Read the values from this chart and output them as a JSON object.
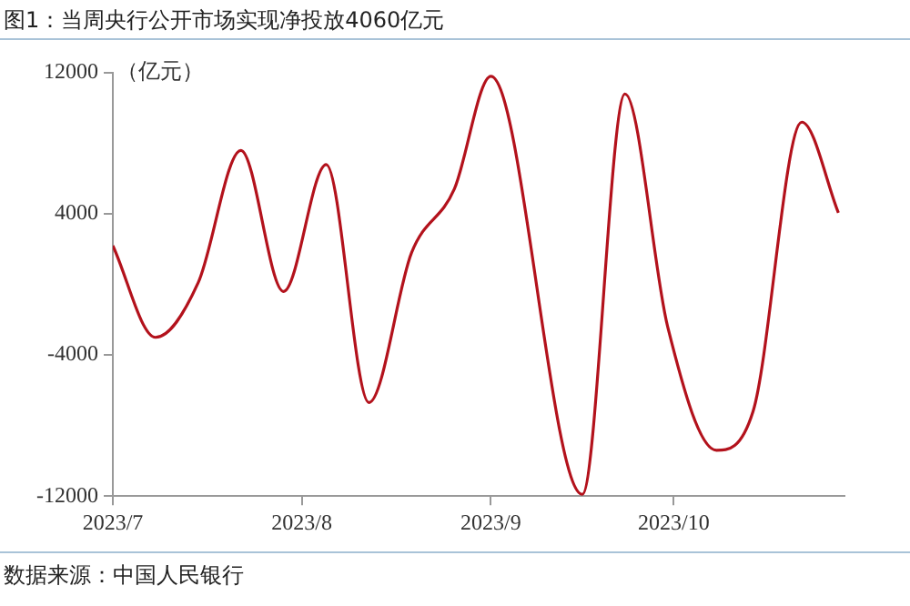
{
  "chart_data": {
    "type": "line",
    "title": "图1：当周央行公开市场实现净投放4060亿元",
    "ylabel": "（亿元）",
    "annotations": [
      "数据来源：中国人民银行"
    ],
    "x": [
      "2023-07-01",
      "2023-07-08",
      "2023-07-15",
      "2023-07-22",
      "2023-07-29",
      "2023-08-05",
      "2023-08-12",
      "2023-08-19",
      "2023-08-26",
      "2023-09-01",
      "2023-09-16",
      "2023-09-23",
      "2023-09-30",
      "2023-10-08",
      "2023-10-14",
      "2023-10-22",
      "2023-10-28"
    ],
    "series": [
      {
        "color": "#b3121c",
        "values": [
          2200,
          -3000,
          100,
          7600,
          -400,
          6800,
          -6700,
          1800,
          5400,
          11800,
          -11900,
          10800,
          -2400,
          -9400,
          -7200,
          9200,
          4060
        ]
      }
    ],
    "xlim": [
      "2023-07-01",
      "2023-10-29"
    ],
    "xticks": [
      {
        "value": "2023-07-01",
        "label": "2023/7"
      },
      {
        "value": "2023-08-01",
        "label": "2023/8"
      },
      {
        "value": "2023-09-01",
        "label": "2023/9"
      },
      {
        "value": "2023-10-01",
        "label": "2023/10"
      }
    ],
    "ylim": [
      -12000,
      12000
    ],
    "yticks": [
      -12000,
      -4000,
      4000,
      12000
    ],
    "grid": false,
    "legend": false,
    "marker": "none",
    "line_style": "solid"
  }
}
